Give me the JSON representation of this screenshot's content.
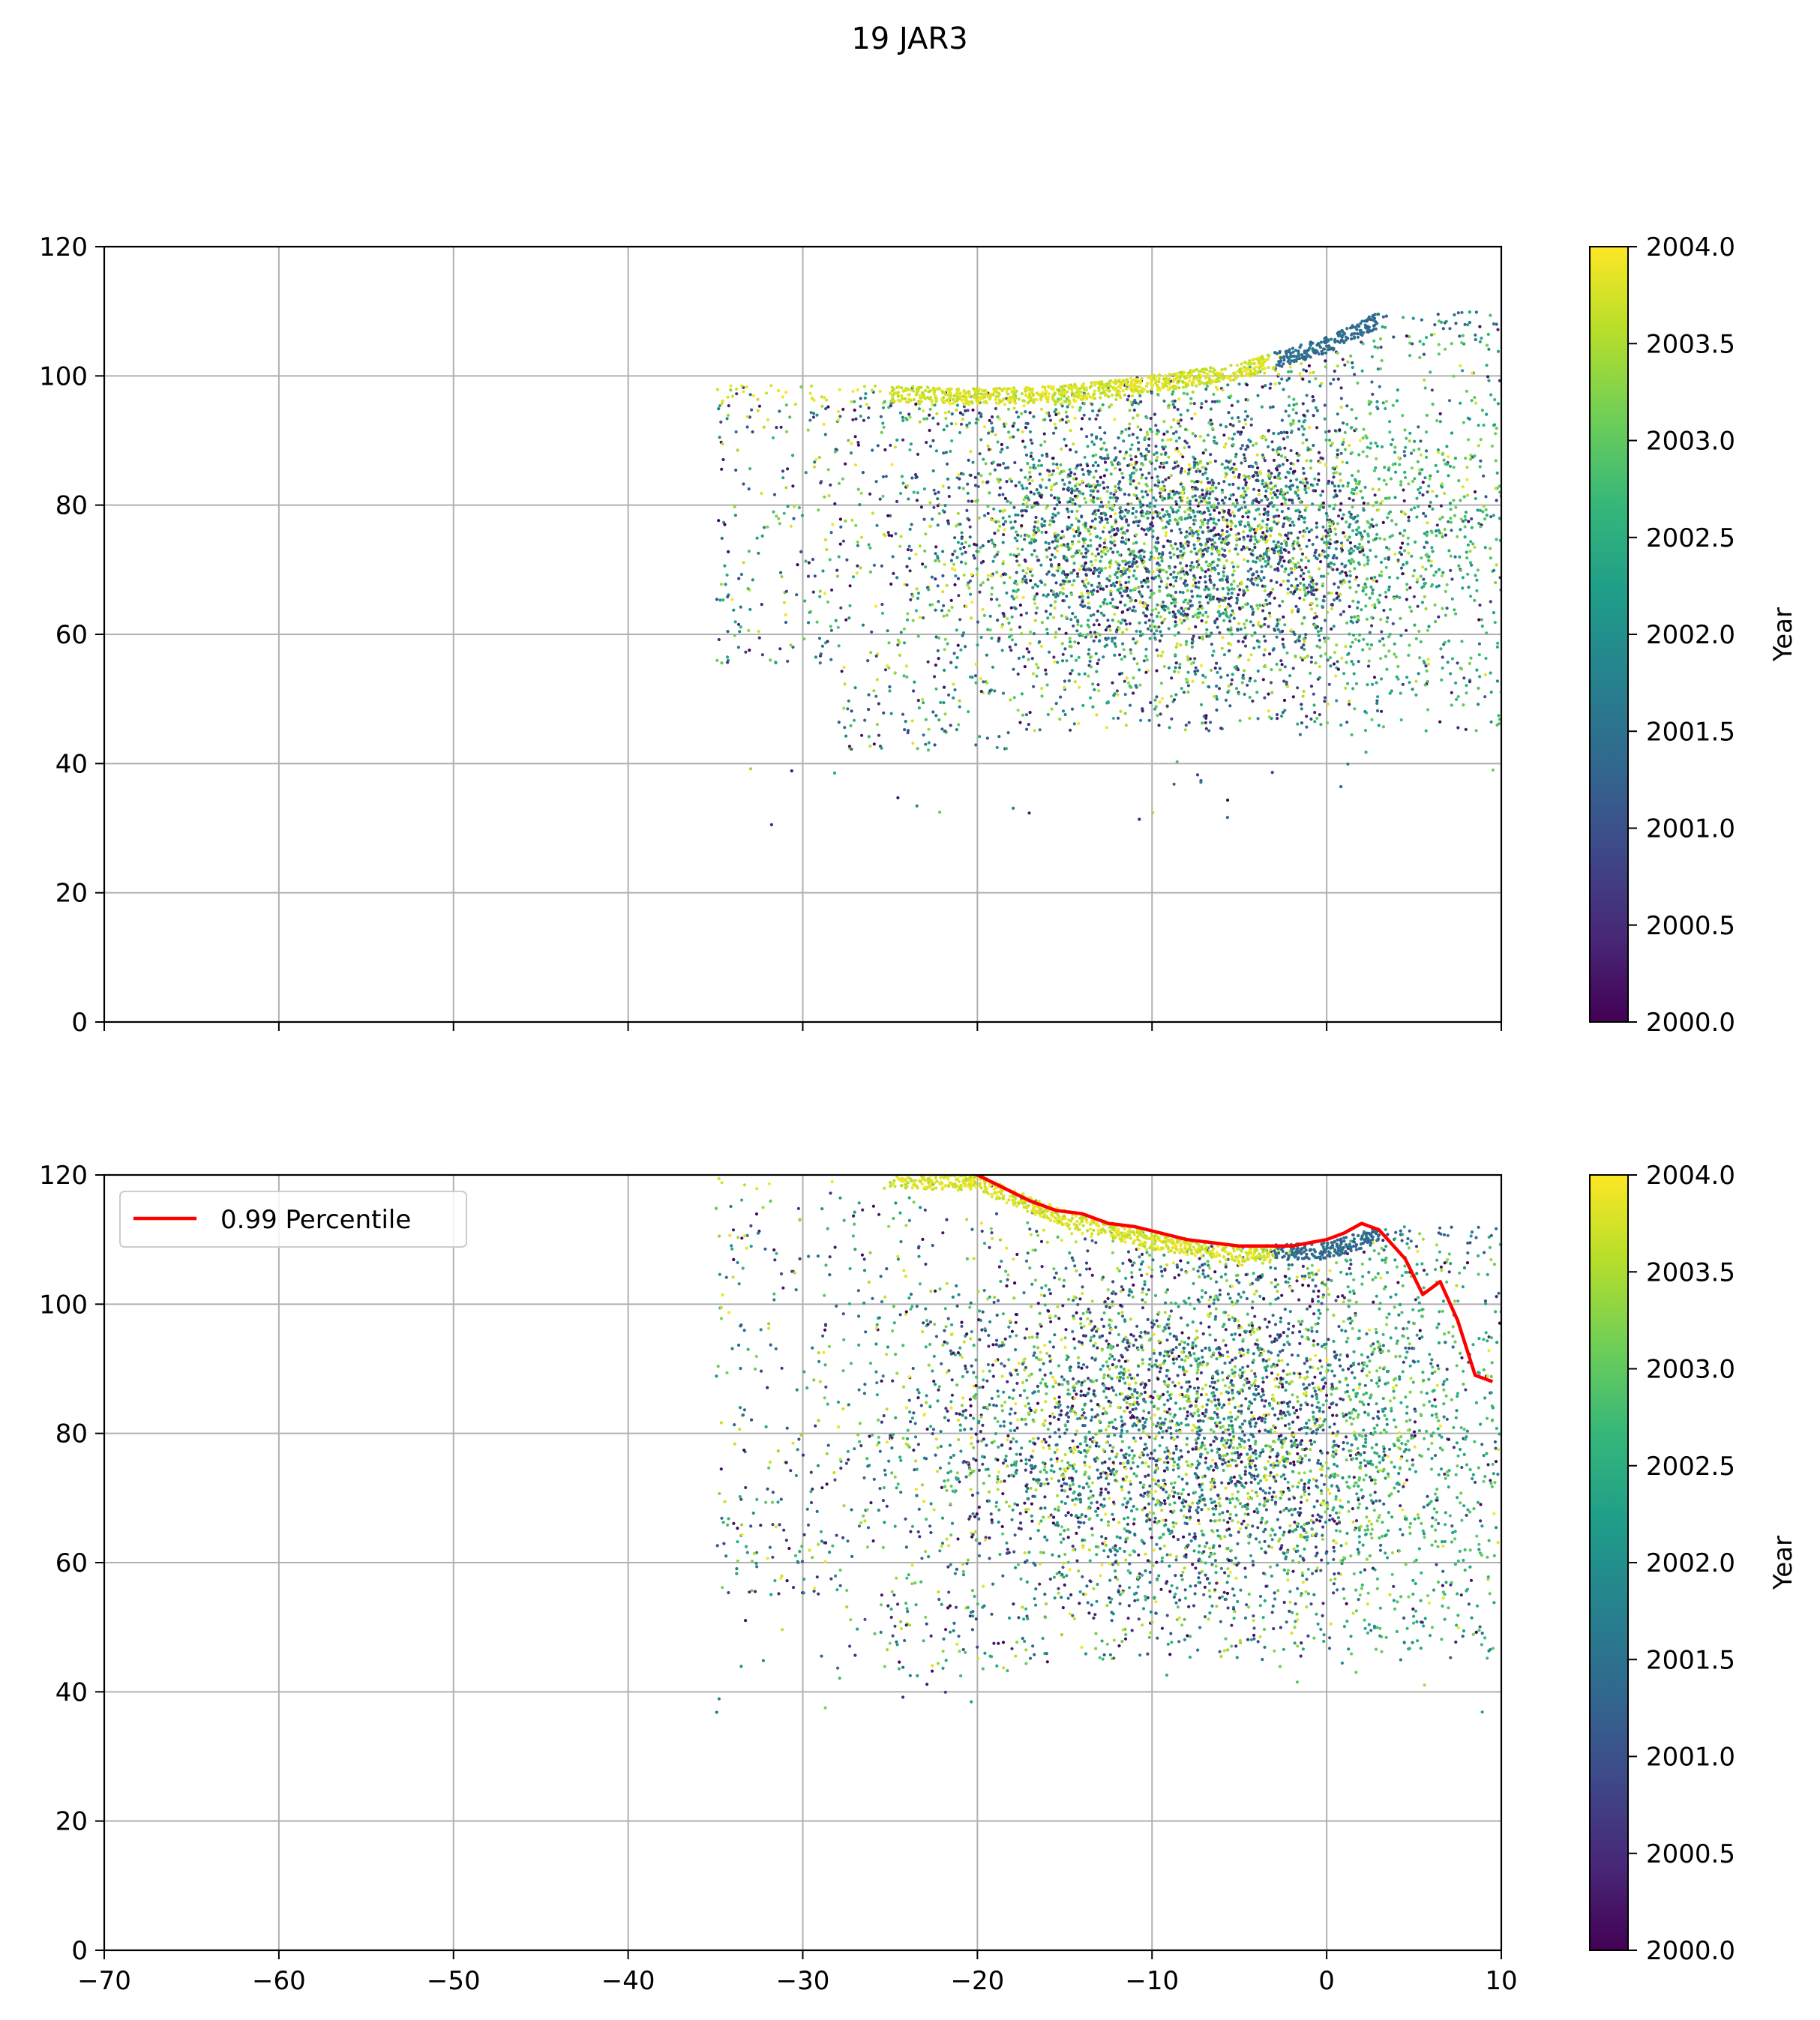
{
  "figure": {
    "title": "19 JAR3"
  },
  "colormap": {
    "name": "viridis",
    "stops": [
      "#440154",
      "#482878",
      "#3e4989",
      "#31688e",
      "#26828e",
      "#1f9e89",
      "#35b779",
      "#6ece58",
      "#b5de2b",
      "#fde725"
    ]
  },
  "chart_data": [
    {
      "type": "scatter",
      "panel": "top",
      "xlim": [
        -70,
        10
      ],
      "ylim": [
        0,
        120
      ],
      "xticks": [
        -70,
        -60,
        -50,
        -40,
        -30,
        -20,
        -10,
        0,
        10
      ],
      "yticks": [
        0,
        20,
        40,
        60,
        80,
        100,
        120
      ],
      "xtick_labels_visible": false,
      "grid": true,
      "color_by": "Year",
      "colorbar": {
        "label": "Year",
        "range": [
          2000.0,
          2004.0
        ],
        "ticks": [
          "2000.0",
          "2000.5",
          "2001.0",
          "2001.5",
          "2002.0",
          "2002.5",
          "2003.0",
          "2003.5",
          "2004.0"
        ]
      },
      "point_cloud": {
        "count_approx": 20000,
        "x_range": [
          -35,
          10
        ],
        "y_range": [
          30,
          118
        ],
        "upper_edge": [
          [
            -25,
            98.5
          ],
          [
            -20,
            98
          ],
          [
            -15,
            98.5
          ],
          [
            -10,
            100
          ],
          [
            -5,
            102
          ],
          [
            0,
            106
          ],
          [
            3,
            110
          ]
        ],
        "dense_core_x": [
          -22,
          8
        ],
        "dense_core_y": [
          55,
          95
        ]
      }
    },
    {
      "type": "scatter",
      "panel": "bottom",
      "xlim": [
        -70,
        10
      ],
      "ylim": [
        0,
        120
      ],
      "xticks": [
        -70,
        -60,
        -50,
        -40,
        -30,
        -20,
        -10,
        0,
        10
      ],
      "xtick_labels": [
        "−70",
        "−60",
        "−50",
        "−40",
        "−30",
        "−20",
        "−10",
        "0",
        "10"
      ],
      "yticks": [
        0,
        20,
        40,
        60,
        80,
        100,
        120
      ],
      "grid": true,
      "legend": {
        "placement": "upper-left",
        "entries": [
          "0.99 Percentile"
        ]
      },
      "color_by": "Year",
      "colorbar": {
        "label": "Year",
        "range": [
          2000.0,
          2004.0
        ],
        "ticks": [
          "2000.0",
          "2000.5",
          "2001.0",
          "2001.5",
          "2002.0",
          "2002.5",
          "2003.0",
          "2003.5",
          "2004.0"
        ]
      },
      "point_cloud": {
        "count_approx": 20000,
        "x_range": [
          -35,
          10
        ],
        "y_range": [
          36,
          120
        ],
        "upper_edge": [
          [
            -30,
            121
          ],
          [
            -20,
            120
          ],
          [
            -15,
            114.5
          ],
          [
            -10,
            111
          ],
          [
            -5,
            109
          ],
          [
            0,
            109.5
          ],
          [
            3,
            112
          ]
        ],
        "dense_core_x": [
          -22,
          8
        ],
        "dense_core_y": [
          55,
          105
        ]
      },
      "series": [
        {
          "name": "0.99 Percentile",
          "color": "#ff0000",
          "x": [
            -21,
            -20,
            -18.5,
            -17,
            -15.5,
            -14,
            -13.5,
            -12.5,
            -11,
            -9.5,
            -8,
            -6.5,
            -5,
            -4,
            -3,
            -2,
            -1,
            0,
            1,
            2,
            3,
            4.5,
            5.5,
            6.5,
            7.5,
            8.5,
            9.5
          ],
          "y": [
            121,
            120,
            118,
            116,
            114.5,
            114,
            113.5,
            112.5,
            112,
            111,
            110,
            109.5,
            109,
            109,
            109,
            109,
            109.5,
            110,
            111,
            112.5,
            111.5,
            107,
            101.5,
            103.5,
            97.5,
            89,
            88
          ]
        }
      ]
    }
  ]
}
